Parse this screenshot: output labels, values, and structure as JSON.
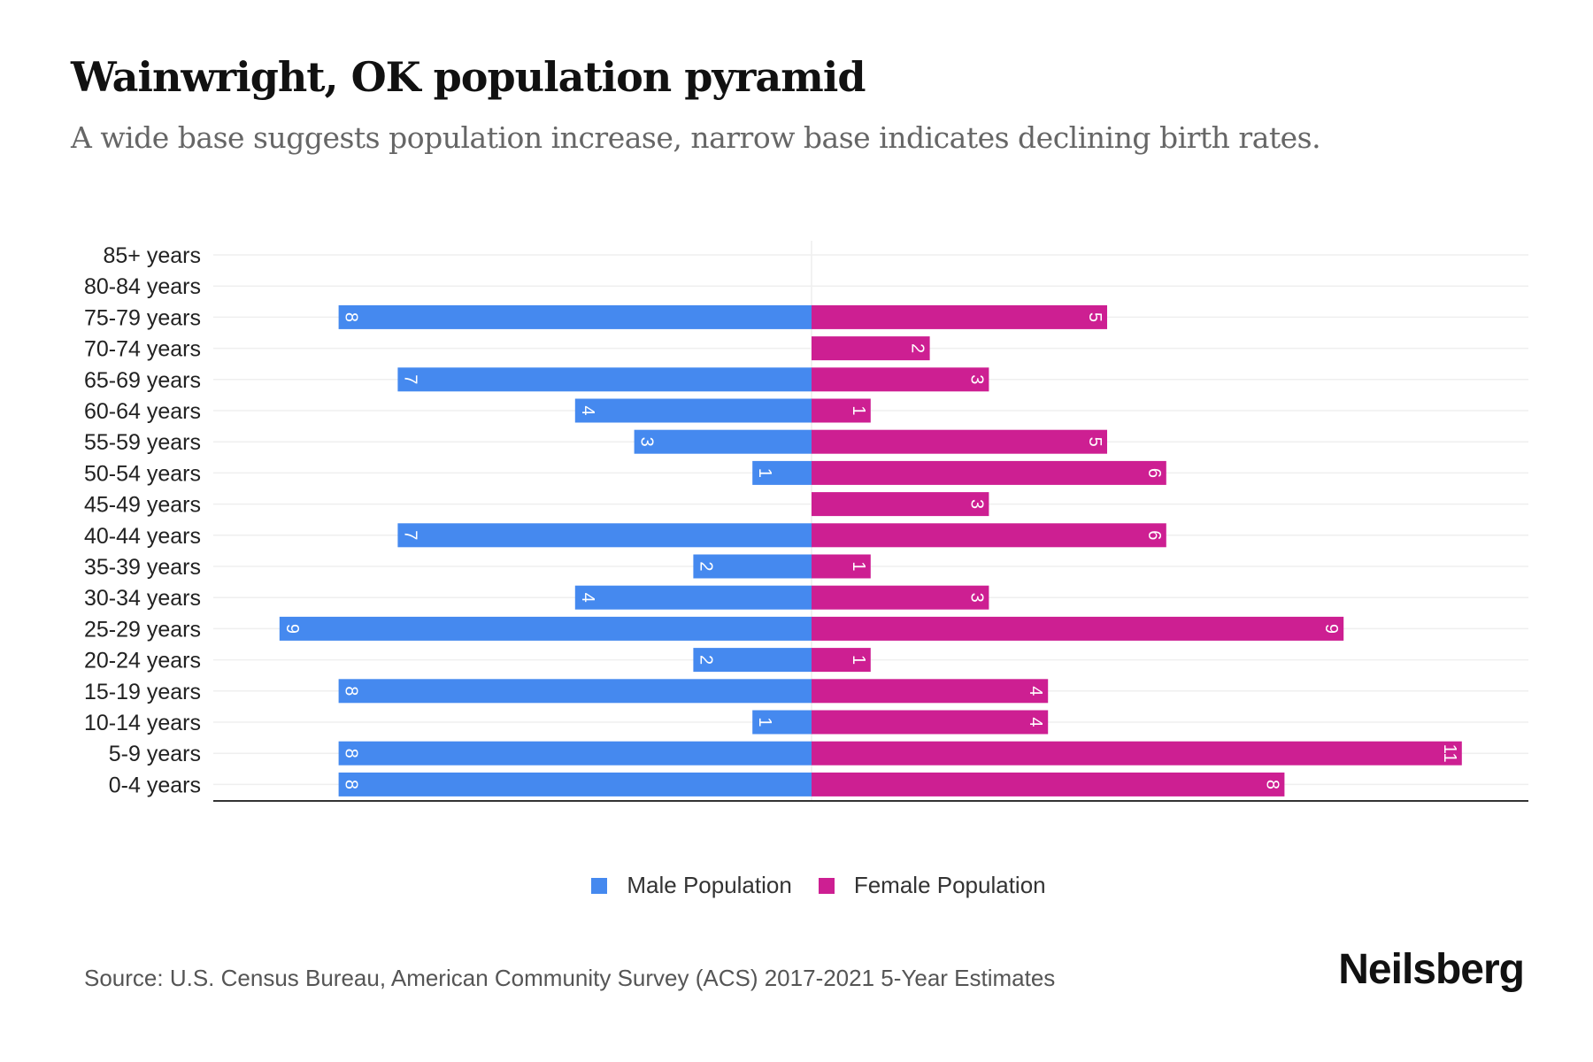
{
  "title": "Wainwright, OK population pyramid",
  "subtitle": "A wide base suggests population increase, narrow base indicates declining birth rates.",
  "source": "Source: U.S. Census Bureau, American Community Survey (ACS) 2017-2021 5-Year Estimates",
  "logo": "Neilsberg",
  "colors": {
    "male": "#4589ef",
    "female": "#cd1f92"
  },
  "chart_data": {
    "type": "bar",
    "orientation": "horizontal-pyramid",
    "categories": [
      "85+ years",
      "80-84 years",
      "75-79 years",
      "70-74 years",
      "65-69 years",
      "60-64 years",
      "55-59 years",
      "50-54 years",
      "45-49 years",
      "40-44 years",
      "35-39 years",
      "30-34 years",
      "25-29 years",
      "20-24 years",
      "15-19 years",
      "10-14 years",
      "5-9 years",
      "0-4 years"
    ],
    "series": [
      {
        "name": "Male Population",
        "values": [
          0,
          0,
          8,
          0,
          7,
          4,
          3,
          1,
          0,
          7,
          2,
          4,
          9,
          2,
          8,
          1,
          8,
          8
        ]
      },
      {
        "name": "Female Population",
        "values": [
          0,
          0,
          5,
          2,
          3,
          1,
          5,
          6,
          3,
          6,
          1,
          3,
          9,
          1,
          4,
          4,
          11,
          8
        ]
      }
    ],
    "xlim": [
      -10,
      15.5
    ],
    "legend": "bottom-center",
    "grid": true
  }
}
